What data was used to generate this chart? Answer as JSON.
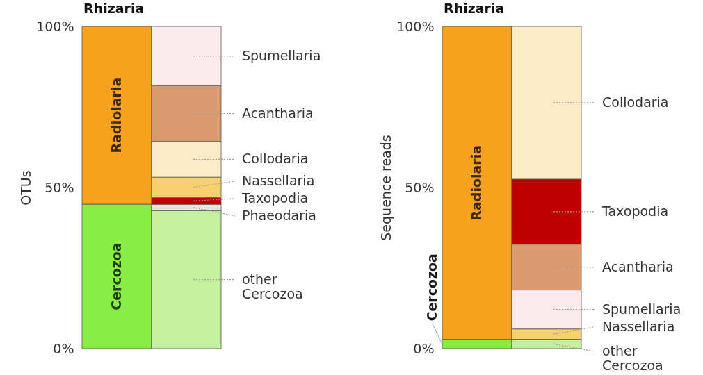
{
  "chart_data": [
    {
      "type": "bar",
      "title": "Rhizaria",
      "ylabel": "OTUs",
      "categories": [
        null,
        null
      ],
      "stacked": true,
      "ylim": [
        0,
        100
      ],
      "yticks": [
        {
          "value": 0,
          "label": "0%"
        },
        {
          "value": 50,
          "label": "50%"
        },
        {
          "value": 100,
          "label": "100%"
        }
      ],
      "tick_labels": "y",
      "series": [
        {
          "name": "Cercozoa",
          "color": "#88ee44",
          "values": [
            44.8,
            null
          ]
        },
        {
          "name": "Radiolaria",
          "color": "#f7a21e",
          "values": [
            55.2,
            null
          ]
        },
        {
          "name": "other Cercozoa",
          "color": "#c4f0a0",
          "values": [
            null,
            42.8
          ]
        },
        {
          "name": "Phaeodaria",
          "color": "#e6e6e0",
          "values": [
            null,
            2.0
          ]
        },
        {
          "name": "Taxopodia",
          "color": "#c00000",
          "values": [
            null,
            2.1
          ]
        },
        {
          "name": "Nassellaria",
          "color": "#f8d070",
          "values": [
            null,
            6.3
          ]
        },
        {
          "name": "Collodaria",
          "color": "#fdebc8",
          "values": [
            null,
            11.1
          ]
        },
        {
          "name": "Acantharia",
          "color": "#dc9a70",
          "values": [
            null,
            17.3
          ]
        },
        {
          "name": "Spumellaria",
          "color": "#fbeaec",
          "values": [
            null,
            18.4
          ]
        }
      ]
    },
    {
      "type": "bar",
      "title": "Rhizaria",
      "ylabel": "Sequence reads",
      "categories": [
        null,
        null
      ],
      "stacked": true,
      "ylim": [
        0,
        100
      ],
      "yticks": [
        {
          "value": 0,
          "label": "0%"
        },
        {
          "value": 50,
          "label": "50%"
        },
        {
          "value": 100,
          "label": "100%"
        }
      ],
      "tick_labels": "y",
      "series": [
        {
          "name": "Cercozoa",
          "color": "#88ee44",
          "values": [
            2.9,
            null
          ]
        },
        {
          "name": "Radiolaria",
          "color": "#f7a21e",
          "values": [
            97.1,
            null
          ]
        },
        {
          "name": "other Cercozoa",
          "color": "#c4f0a0",
          "values": [
            null,
            2.9
          ]
        },
        {
          "name": "Nassellaria",
          "color": "#f8d070",
          "values": [
            null,
            3.2
          ]
        },
        {
          "name": "Spumellaria",
          "color": "#fbeaec",
          "values": [
            null,
            12.1
          ]
        },
        {
          "name": "Acantharia",
          "color": "#dc9a70",
          "values": [
            null,
            14.2
          ]
        },
        {
          "name": "Taxopodia",
          "color": "#c00000",
          "values": [
            null,
            20.2
          ]
        },
        {
          "name": "Collodaria",
          "color": "#fdebc8",
          "values": [
            null,
            47.4
          ]
        }
      ]
    }
  ]
}
